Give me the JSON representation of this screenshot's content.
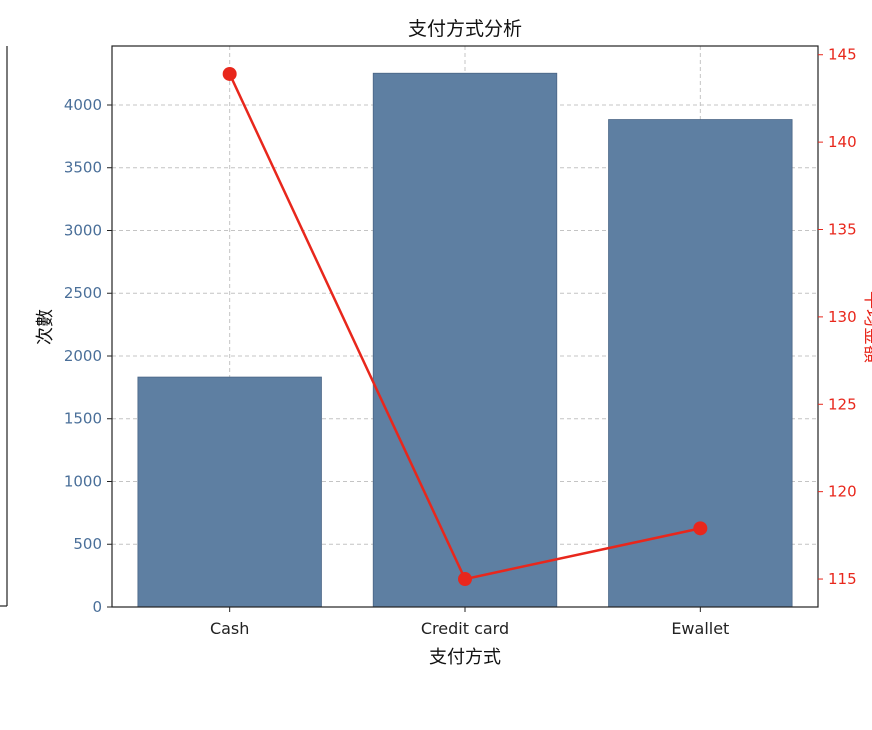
{
  "chart_data": {
    "type": "bar",
    "title": "支付方式分析",
    "xlabel": "支付方式",
    "ylabel": "次數",
    "y2label": "平均金額",
    "categories": [
      "Cash",
      "Credit card",
      "Ewallet"
    ],
    "series": [
      {
        "axis": "left",
        "chart": "bar",
        "values": [
          1832,
          4253,
          3884
        ]
      },
      {
        "axis": "right",
        "chart": "line",
        "values": [
          143.9,
          115.0,
          117.9
        ]
      }
    ],
    "ylim": [
      0,
      4470
    ],
    "y2lim": [
      113.4,
      145.5
    ],
    "yticks": [
      0,
      500,
      1000,
      1500,
      2000,
      2500,
      3000,
      3500,
      4000
    ],
    "y2ticks": [
      115,
      120,
      125,
      130,
      135,
      140,
      145
    ],
    "grid": true,
    "colors": {
      "bar": "#5e7fa2",
      "line": "#e8271c",
      "left_axis": "#4a6f99",
      "right_axis": "#e8271c"
    }
  }
}
